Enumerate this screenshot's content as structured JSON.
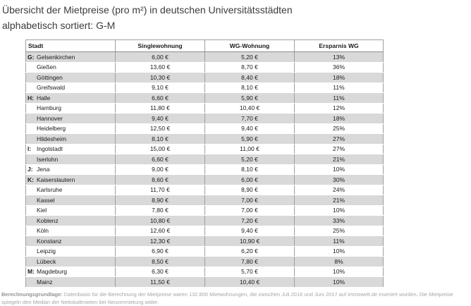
{
  "title": {
    "line1": "Übersicht der Mietpreise (pro m²) in deutschen Universitätsstädten",
    "line2": "alphabetisch sortiert: G-M"
  },
  "table": {
    "headers": [
      "Stadt",
      "Singlewohnung",
      "WG-Wohnung",
      "Ersparnis WG"
    ],
    "rows": [
      {
        "letter": "G:",
        "city": "Gelsenkirchen",
        "single": "6,00 €",
        "wg": "5,20 €",
        "saving": "13%"
      },
      {
        "letter": "",
        "city": "Gießen",
        "single": "13,60 €",
        "wg": "8,70 €",
        "saving": "36%"
      },
      {
        "letter": "",
        "city": "Göttingen",
        "single": "10,30 €",
        "wg": "8,40 €",
        "saving": "18%"
      },
      {
        "letter": "",
        "city": "Greifswald",
        "single": "9,10 €",
        "wg": "8,10 €",
        "saving": "11%"
      },
      {
        "letter": "H:",
        "city": "Halle",
        "single": "6,60 €",
        "wg": "5,90 €",
        "saving": "11%"
      },
      {
        "letter": "",
        "city": "Hamburg",
        "single": "11,80 €",
        "wg": "10,40 €",
        "saving": "12%"
      },
      {
        "letter": "",
        "city": "Hannover",
        "single": "9,40 €",
        "wg": "7,70 €",
        "saving": "18%"
      },
      {
        "letter": "",
        "city": "Heidelberg",
        "single": "12,50 €",
        "wg": "9,40 €",
        "saving": "25%"
      },
      {
        "letter": "",
        "city": "Hildesheim",
        "single": "8,10 €",
        "wg": "5,90 €",
        "saving": "27%"
      },
      {
        "letter": "I:",
        "city": "Ingolstadt",
        "single": "15,00 €",
        "wg": "11,00 €",
        "saving": "27%"
      },
      {
        "letter": "",
        "city": "Iserlohn",
        "single": "6,60 €",
        "wg": "5,20 €",
        "saving": "21%"
      },
      {
        "letter": "J:",
        "city": "Jena",
        "single": "9,00 €",
        "wg": "8,10 €",
        "saving": "10%"
      },
      {
        "letter": "K:",
        "city": "Kaiserslautern",
        "single": "8,60 €",
        "wg": "6,00 €",
        "saving": "30%"
      },
      {
        "letter": "",
        "city": "Karlsruhe",
        "single": "11,70 €",
        "wg": "8,90 €",
        "saving": "24%"
      },
      {
        "letter": "",
        "city": "Kassel",
        "single": "8,90 €",
        "wg": "7,00 €",
        "saving": "21%"
      },
      {
        "letter": "",
        "city": "Kiel",
        "single": "7,80 €",
        "wg": "7,00 €",
        "saving": "10%"
      },
      {
        "letter": "",
        "city": "Koblenz",
        "single": "10,80 €",
        "wg": "7,20 €",
        "saving": "33%"
      },
      {
        "letter": "",
        "city": "Köln",
        "single": "12,60 €",
        "wg": "9,40 €",
        "saving": "25%"
      },
      {
        "letter": "",
        "city": "Konstanz",
        "single": "12,30 €",
        "wg": "10,90 €",
        "saving": "11%"
      },
      {
        "letter": "",
        "city": "Leipzig",
        "single": "6,90 €",
        "wg": "6,20 €",
        "saving": "10%"
      },
      {
        "letter": "",
        "city": "Lübeck",
        "single": "8,50 €",
        "wg": "7,80 €",
        "saving": "8%"
      },
      {
        "letter": "M:",
        "city": "Magdeburg",
        "single": "6,30 €",
        "wg": "5,70 €",
        "saving": "10%"
      },
      {
        "letter": "",
        "city": "Mainz",
        "single": "11,50 €",
        "wg": "10,40 €",
        "saving": "10%"
      }
    ]
  },
  "footer": {
    "label": "Berechnungsgrundlage:",
    "text": "Datenbasis für die Berechnung der Mietpreise waren 132.800 Mietwohnungen, die zwischen Juli 2016 und Juni 2017 auf immowelt.de inseriert wurden. Die Mietpreise spiegeln den Median der Nettokaltmieten bei Neuvermietung wider."
  },
  "colors": {
    "row_alt": "#d9d9d9",
    "border": "#9e9e9e",
    "title_text": "#3b3b3b",
    "footnote_text": "#a6a6a6"
  },
  "chart_data": {
    "type": "table",
    "title": "Übersicht der Mietpreise (pro m²) in deutschen Universitätsstädten alphabetisch sortiert: G-M",
    "columns": [
      "Stadt",
      "Singlewohnung (€/m²)",
      "WG-Wohnung (€/m²)",
      "Ersparnis WG (%)"
    ],
    "rows": [
      [
        "Gelsenkirchen",
        6.0,
        5.2,
        13
      ],
      [
        "Gießen",
        13.6,
        8.7,
        36
      ],
      [
        "Göttingen",
        10.3,
        8.4,
        18
      ],
      [
        "Greifswald",
        9.1,
        8.1,
        11
      ],
      [
        "Halle",
        6.6,
        5.9,
        11
      ],
      [
        "Hamburg",
        11.8,
        10.4,
        12
      ],
      [
        "Hannover",
        9.4,
        7.7,
        18
      ],
      [
        "Heidelberg",
        12.5,
        9.4,
        25
      ],
      [
        "Hildesheim",
        8.1,
        5.9,
        27
      ],
      [
        "Ingolstadt",
        15.0,
        11.0,
        27
      ],
      [
        "Iserlohn",
        6.6,
        5.2,
        21
      ],
      [
        "Jena",
        9.0,
        8.1,
        10
      ],
      [
        "Kaiserslautern",
        8.6,
        6.0,
        30
      ],
      [
        "Karlsruhe",
        11.7,
        8.9,
        24
      ],
      [
        "Kassel",
        8.9,
        7.0,
        21
      ],
      [
        "Kiel",
        7.8,
        7.0,
        10
      ],
      [
        "Koblenz",
        10.8,
        7.2,
        33
      ],
      [
        "Köln",
        12.6,
        9.4,
        25
      ],
      [
        "Konstanz",
        12.3,
        10.9,
        11
      ],
      [
        "Leipzig",
        6.9,
        6.2,
        10
      ],
      [
        "Lübeck",
        8.5,
        7.8,
        8
      ],
      [
        "Magdeburg",
        6.3,
        5.7,
        10
      ],
      [
        "Mainz",
        11.5,
        10.4,
        10
      ]
    ]
  }
}
